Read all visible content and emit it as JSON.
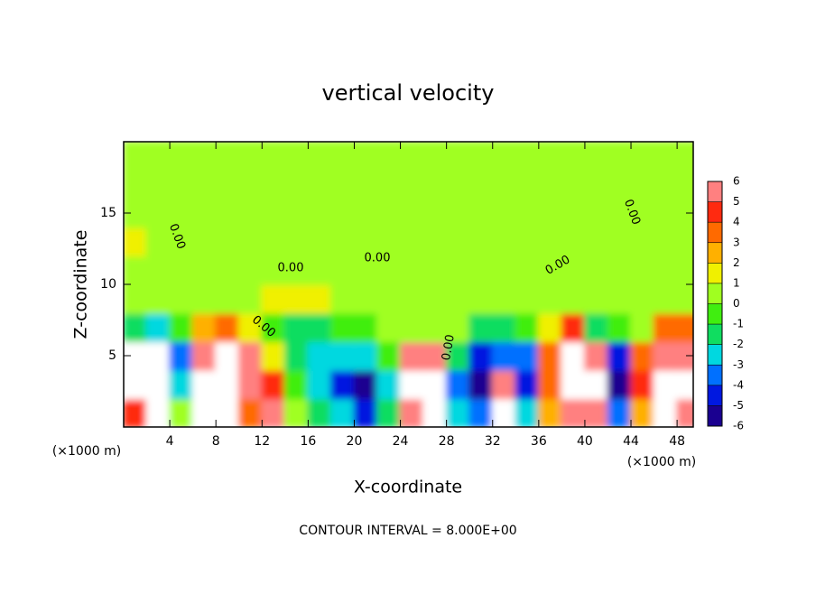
{
  "chart_data": {
    "type": "heatmap",
    "title": "vertical velocity",
    "x_label": "X-coordinate",
    "y_label": "Z-coordinate",
    "x_unit": "(×1000 m)",
    "footer": "CONTOUR INTERVAL = 8.000E+00",
    "x": [
      1,
      3,
      5,
      7,
      9,
      11,
      13,
      15,
      17,
      19,
      21,
      23,
      25,
      27,
      29,
      31,
      33,
      35,
      37,
      39,
      41,
      43,
      45,
      47,
      49
    ],
    "y": [
      1,
      3,
      5,
      7,
      9,
      11,
      13,
      15,
      17,
      19
    ],
    "z": [
      [
        4,
        7,
        0,
        7,
        7,
        3,
        6,
        0,
        -2,
        -3,
        -5,
        -2,
        6,
        7,
        -3,
        -4,
        8,
        -3,
        2,
        6,
        5,
        -4,
        2,
        8,
        6
      ],
      [
        8,
        8,
        -3,
        8,
        8,
        5,
        4,
        -1,
        -3,
        -5,
        -6,
        -3,
        8,
        8,
        -4,
        -6,
        6,
        -5,
        3,
        8,
        7,
        -8,
        4,
        8,
        7
      ],
      [
        8,
        7,
        -4,
        6,
        7,
        5,
        1,
        -2,
        -3,
        -3,
        -3,
        -1,
        5,
        5,
        -2,
        -5,
        -4,
        -4,
        3,
        8,
        6,
        -5,
        3,
        6,
        5
      ],
      [
        -2,
        -3,
        -1,
        2,
        3,
        1,
        -1,
        -2,
        -2,
        -1,
        -1,
        0,
        0,
        0,
        0,
        -2,
        -2,
        -1,
        1,
        4,
        -2,
        -1,
        0,
        3,
        3
      ],
      [
        0.5,
        0.3,
        0.3,
        0.5,
        0.8,
        0.8,
        1,
        1,
        1,
        0.8,
        0.5,
        0.3,
        0.3,
        0.3,
        0.5,
        0.3,
        0.3,
        0.3,
        0.3,
        0.5,
        0.3,
        0.3,
        0.5,
        0.3,
        0.3
      ],
      [
        0.8,
        0.5,
        0.3,
        0.5,
        0.5,
        0.5,
        0.5,
        0.8,
        0.5,
        0.5,
        0.5,
        0.3,
        0.3,
        0.3,
        0.5,
        0.3,
        0.3,
        0.3,
        0.5,
        0.3,
        0.3,
        0.3,
        0.3,
        0.3,
        0.5
      ],
      [
        1,
        0.8,
        0.5,
        0.3,
        0.3,
        0.3,
        0.3,
        0.3,
        0.3,
        0.3,
        0.3,
        0.3,
        0.3,
        0.3,
        0.3,
        0.3,
        0.3,
        0.3,
        0.3,
        0.3,
        0.3,
        0.5,
        0.3,
        0.3,
        0.3
      ],
      [
        0.8,
        0.8,
        0.5,
        0.3,
        0.3,
        0.3,
        0.3,
        0.3,
        0.3,
        0.3,
        0.3,
        0.5,
        0.5,
        0.3,
        0.3,
        0.3,
        0.5,
        0.5,
        0.3,
        0.3,
        0.3,
        0.3,
        0.3,
        0.3,
        0.3
      ],
      [
        0.5,
        0.5,
        0.3,
        0.3,
        0.3,
        0.3,
        0.3,
        0.3,
        0.3,
        0.3,
        0.3,
        0.3,
        0.3,
        0.5,
        0.5,
        0.5,
        0.5,
        0.3,
        0.3,
        0.3,
        0.3,
        0.3,
        0.3,
        0.3,
        0.3
      ],
      [
        0.3,
        0.3,
        0.3,
        0.3,
        0.3,
        0.3,
        0.3,
        0.3,
        0.3,
        0.3,
        0.3,
        0.3,
        0.3,
        0.3,
        0.3,
        0.3,
        0.3,
        0.3,
        0.3,
        0.3,
        0.3,
        0.3,
        0.3,
        0.3,
        0.3
      ]
    ],
    "xlim": [
      0,
      49.4
    ],
    "ylim": [
      0,
      20
    ],
    "xticks": [
      4,
      8,
      12,
      16,
      20,
      24,
      28,
      32,
      36,
      40,
      44,
      48
    ],
    "yticks": [
      5,
      10,
      15
    ],
    "contour_labels": [
      "0.00",
      "0.00",
      "0.00",
      "0.00",
      "0.00",
      "0.00",
      "0.00"
    ],
    "colorbar": {
      "ticks": [
        6,
        5,
        4,
        3,
        2,
        1,
        0,
        -1,
        -2,
        -3,
        -4,
        -5,
        -6
      ],
      "colors": [
        "#ff8080",
        "#ff2a10",
        "#ff6a00",
        "#ffb000",
        "#f0f000",
        "#a0ff20",
        "#40ee10",
        "#10dd60",
        "#00d8e0",
        "#0070ff",
        "#0018e0",
        "#1a0090",
        "#6a0dad"
      ],
      "above_color": "#ffffff"
    }
  }
}
